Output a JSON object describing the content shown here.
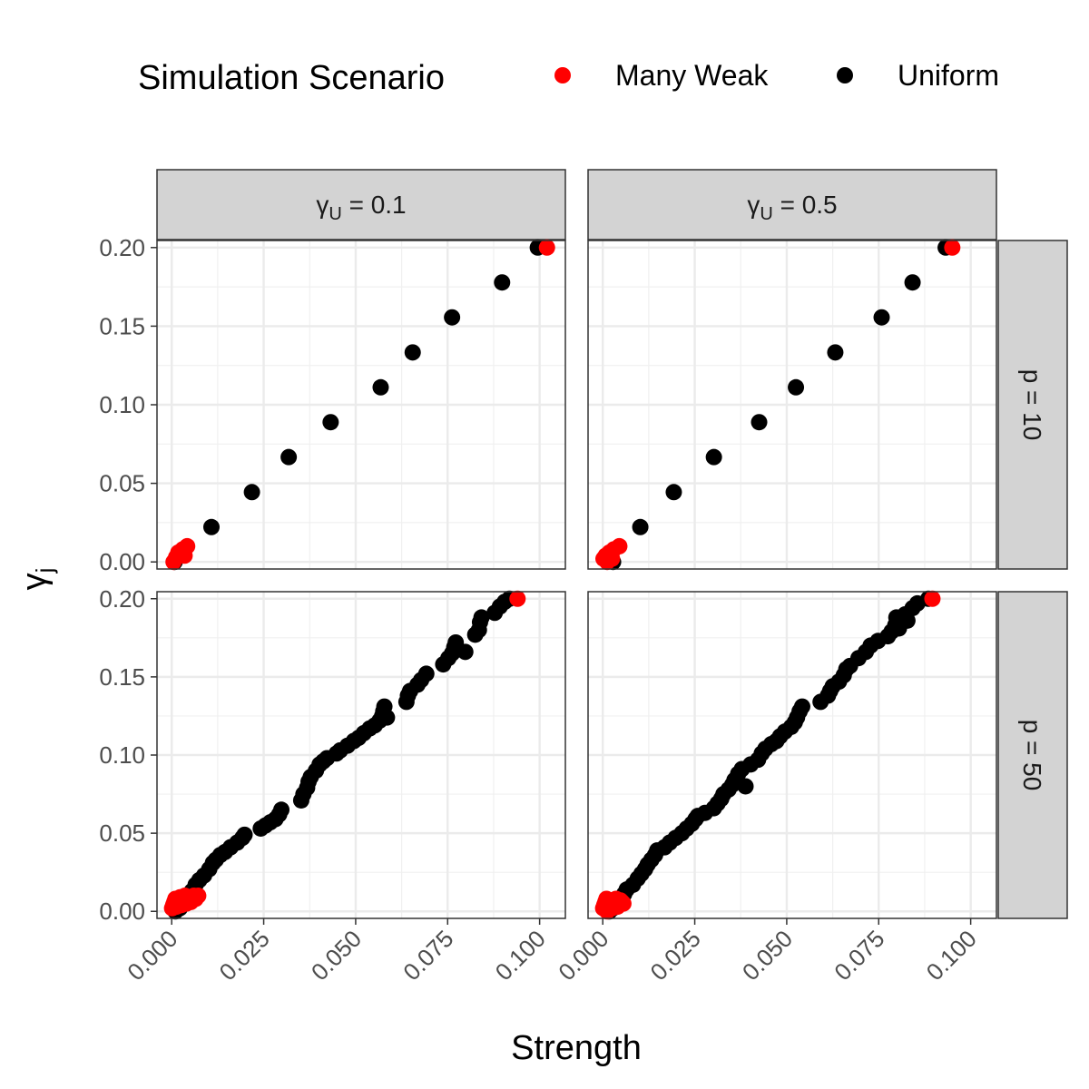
{
  "legend": {
    "title": "Simulation Scenario",
    "entries": [
      {
        "label": "Many Weak",
        "color": "#ff0000"
      },
      {
        "label": "Uniform",
        "color": "#000000"
      }
    ]
  },
  "axes": {
    "xlabel": "Strength",
    "ylabel_main": "γ",
    "ylabel_sub": "j"
  },
  "strips": {
    "columns": [
      {
        "main": "γ",
        "sub": "U",
        "rest": " = 0.1"
      },
      {
        "main": "γ",
        "sub": "U",
        "rest": " = 0.5"
      }
    ],
    "rows": [
      {
        "label": "p = 10"
      },
      {
        "label": "p = 50"
      }
    ]
  },
  "chart_data": {
    "type": "scatter",
    "facets": "2x2 grid (rows: p, columns: γU)",
    "x_ticks": [
      "0.000",
      "0.025",
      "0.050",
      "0.075",
      "0.100"
    ],
    "y_ticks": [
      "0.00",
      "0.05",
      "0.10",
      "0.15",
      "0.20"
    ],
    "xlim": [
      -0.004,
      0.107
    ],
    "ylim": [
      -0.0045,
      0.2045
    ],
    "grid": true,
    "colors": {
      "Many Weak": "#ff0000",
      "Uniform": "#000000"
    },
    "panels": [
      {
        "row": "p = 10",
        "col": "γU = 0.1",
        "many_weak": [
          [
            0.0005,
            0.0
          ],
          [
            0.0012,
            0.003
          ],
          [
            0.0018,
            0.006
          ],
          [
            0.0025,
            0.004
          ],
          [
            0.003,
            0.008
          ],
          [
            0.0035,
            0.004
          ],
          [
            0.0042,
            0.01
          ],
          [
            0.102,
            0.2
          ]
        ],
        "uniform": [
          [
            0.0008,
            0.0
          ],
          [
            0.0108,
            0.0222
          ],
          [
            0.0218,
            0.0444
          ],
          [
            0.0318,
            0.0667
          ],
          [
            0.0432,
            0.0889
          ],
          [
            0.0568,
            0.1111
          ],
          [
            0.0655,
            0.1333
          ],
          [
            0.0762,
            0.1556
          ],
          [
            0.0898,
            0.1778
          ],
          [
            0.0995,
            0.2
          ]
        ]
      },
      {
        "row": "p = 10",
        "col": "γU = 0.5",
        "many_weak": [
          [
            0.0002,
            0.002
          ],
          [
            0.0008,
            0.004
          ],
          [
            0.0012,
            0.0
          ],
          [
            0.0018,
            0.006
          ],
          [
            0.0025,
            0.002
          ],
          [
            0.003,
            0.008
          ],
          [
            0.0045,
            0.01
          ],
          [
            0.095,
            0.2
          ]
        ],
        "uniform": [
          [
            0.0028,
            0.0
          ],
          [
            0.0102,
            0.0222
          ],
          [
            0.0193,
            0.0444
          ],
          [
            0.0302,
            0.0667
          ],
          [
            0.0425,
            0.0889
          ],
          [
            0.0525,
            0.1111
          ],
          [
            0.0632,
            0.1333
          ],
          [
            0.0758,
            0.1556
          ],
          [
            0.0842,
            0.1778
          ],
          [
            0.0932,
            0.2
          ]
        ]
      },
      {
        "row": "p = 50",
        "col": "γU = 0.1",
        "many_weak": [
          [
            0.0001,
            0.002
          ],
          [
            0.0004,
            0.004
          ],
          [
            0.0007,
            0.006
          ],
          [
            0.001,
            0.008
          ],
          [
            0.0013,
            0.003
          ],
          [
            0.0016,
            0.005
          ],
          [
            0.002,
            0.007
          ],
          [
            0.0023,
            0.009
          ],
          [
            0.0026,
            0.004
          ],
          [
            0.003,
            0.006
          ],
          [
            0.0033,
            0.008
          ],
          [
            0.0036,
            0.01
          ],
          [
            0.004,
            0.005
          ],
          [
            0.0044,
            0.007
          ],
          [
            0.0048,
            0.009
          ],
          [
            0.0052,
            0.006
          ],
          [
            0.0056,
            0.008
          ],
          [
            0.006,
            0.01
          ],
          [
            0.0065,
            0.008
          ],
          [
            0.0072,
            0.01
          ],
          [
            0.094,
            0.2
          ]
        ],
        "uniform": [
          [
            0.001,
            0.0
          ],
          [
            0.0022,
            0.002
          ],
          [
            0.0035,
            0.005
          ],
          [
            0.0045,
            0.009
          ],
          [
            0.0055,
            0.013
          ],
          [
            0.0065,
            0.017
          ],
          [
            0.0075,
            0.02
          ],
          [
            0.0088,
            0.023
          ],
          [
            0.0102,
            0.027
          ],
          [
            0.0112,
            0.031
          ],
          [
            0.012,
            0.033
          ],
          [
            0.0132,
            0.036
          ],
          [
            0.0145,
            0.038
          ],
          [
            0.016,
            0.041
          ],
          [
            0.0178,
            0.044
          ],
          [
            0.0192,
            0.047
          ],
          [
            0.0198,
            0.049
          ],
          [
            0.0242,
            0.053
          ],
          [
            0.0255,
            0.055
          ],
          [
            0.0268,
            0.057
          ],
          [
            0.0282,
            0.059
          ],
          [
            0.0292,
            0.062
          ],
          [
            0.0298,
            0.065
          ],
          [
            0.0352,
            0.071
          ],
          [
            0.0358,
            0.075
          ],
          [
            0.0368,
            0.079
          ],
          [
            0.0372,
            0.083
          ],
          [
            0.0378,
            0.086
          ],
          [
            0.0392,
            0.09
          ],
          [
            0.0402,
            0.094
          ],
          [
            0.0412,
            0.096
          ],
          [
            0.0422,
            0.098
          ],
          [
            0.0448,
            0.101
          ],
          [
            0.0458,
            0.103
          ],
          [
            0.0478,
            0.106
          ],
          [
            0.0495,
            0.109
          ],
          [
            0.0508,
            0.111
          ],
          [
            0.0522,
            0.114
          ],
          [
            0.0538,
            0.117
          ],
          [
            0.0552,
            0.119
          ],
          [
            0.0565,
            0.122
          ],
          [
            0.0572,
            0.125
          ],
          [
            0.0575,
            0.128
          ],
          [
            0.0578,
            0.131
          ],
          [
            0.0585,
            0.124
          ],
          [
            0.0638,
            0.134
          ],
          [
            0.0642,
            0.138
          ],
          [
            0.0648,
            0.141
          ],
          [
            0.0668,
            0.145
          ],
          [
            0.0678,
            0.148
          ],
          [
            0.0692,
            0.152
          ],
          [
            0.0738,
            0.158
          ],
          [
            0.0752,
            0.162
          ],
          [
            0.0762,
            0.165
          ],
          [
            0.0768,
            0.169
          ],
          [
            0.0772,
            0.172
          ],
          [
            0.0798,
            0.166
          ],
          [
            0.0825,
            0.177
          ],
          [
            0.0835,
            0.18
          ],
          [
            0.0838,
            0.185
          ],
          [
            0.0842,
            0.188
          ],
          [
            0.0878,
            0.191
          ],
          [
            0.0892,
            0.195
          ],
          [
            0.0905,
            0.198
          ],
          [
            0.0918,
            0.2
          ]
        ]
      },
      {
        "row": "p = 50",
        "col": "γU = 0.5",
        "many_weak": [
          [
            0.0001,
            0.002
          ],
          [
            0.0004,
            0.004
          ],
          [
            0.0007,
            0.006
          ],
          [
            0.001,
            0.008
          ],
          [
            0.0012,
            0.0
          ],
          [
            0.0015,
            0.003
          ],
          [
            0.0018,
            0.005
          ],
          [
            0.0022,
            0.007
          ],
          [
            0.0025,
            0.002
          ],
          [
            0.0028,
            0.004
          ],
          [
            0.0032,
            0.006
          ],
          [
            0.0036,
            0.008
          ],
          [
            0.004,
            0.003
          ],
          [
            0.0044,
            0.005
          ],
          [
            0.0048,
            0.007
          ],
          [
            0.0052,
            0.006
          ],
          [
            0.0056,
            0.005
          ],
          [
            0.0896,
            0.2
          ]
        ],
        "uniform": [
          [
            0.0018,
            0.0
          ],
          [
            0.0028,
            0.002
          ],
          [
            0.0038,
            0.005
          ],
          [
            0.0048,
            0.008
          ],
          [
            0.0058,
            0.011
          ],
          [
            0.0065,
            0.014
          ],
          [
            0.0082,
            0.017
          ],
          [
            0.0095,
            0.021
          ],
          [
            0.0105,
            0.024
          ],
          [
            0.0115,
            0.027
          ],
          [
            0.0122,
            0.03
          ],
          [
            0.0132,
            0.033
          ],
          [
            0.0142,
            0.036
          ],
          [
            0.0148,
            0.039
          ],
          [
            0.0168,
            0.041
          ],
          [
            0.0182,
            0.044
          ],
          [
            0.0198,
            0.047
          ],
          [
            0.0215,
            0.05
          ],
          [
            0.0228,
            0.053
          ],
          [
            0.0242,
            0.056
          ],
          [
            0.0252,
            0.059
          ],
          [
            0.0258,
            0.061
          ],
          [
            0.0278,
            0.063
          ],
          [
            0.0302,
            0.066
          ],
          [
            0.0312,
            0.069
          ],
          [
            0.0322,
            0.072
          ],
          [
            0.0328,
            0.075
          ],
          [
            0.0342,
            0.078
          ],
          [
            0.0352,
            0.081
          ],
          [
            0.0358,
            0.084
          ],
          [
            0.0368,
            0.088
          ],
          [
            0.0378,
            0.091
          ],
          [
            0.0388,
            0.08
          ],
          [
            0.0402,
            0.094
          ],
          [
            0.0422,
            0.097
          ],
          [
            0.0432,
            0.101
          ],
          [
            0.0442,
            0.104
          ],
          [
            0.0458,
            0.107
          ],
          [
            0.0472,
            0.109
          ],
          [
            0.0482,
            0.112
          ],
          [
            0.0495,
            0.115
          ],
          [
            0.0512,
            0.118
          ],
          [
            0.0522,
            0.121
          ],
          [
            0.0528,
            0.124
          ],
          [
            0.0535,
            0.128
          ],
          [
            0.0542,
            0.131
          ],
          [
            0.0592,
            0.134
          ],
          [
            0.0612,
            0.138
          ],
          [
            0.0618,
            0.141
          ],
          [
            0.0625,
            0.144
          ],
          [
            0.0642,
            0.147
          ],
          [
            0.0655,
            0.151
          ],
          [
            0.0662,
            0.155
          ],
          [
            0.0672,
            0.157
          ],
          [
            0.0695,
            0.162
          ],
          [
            0.0715,
            0.166
          ],
          [
            0.0728,
            0.17
          ],
          [
            0.0748,
            0.173
          ],
          [
            0.0775,
            0.176
          ],
          [
            0.0785,
            0.179
          ],
          [
            0.0795,
            0.183
          ],
          [
            0.0798,
            0.188
          ],
          [
            0.0805,
            0.181
          ],
          [
            0.0822,
            0.19
          ],
          [
            0.0828,
            0.186
          ],
          [
            0.0842,
            0.194
          ],
          [
            0.0855,
            0.197
          ],
          [
            0.0885,
            0.2
          ]
        ]
      }
    ]
  }
}
